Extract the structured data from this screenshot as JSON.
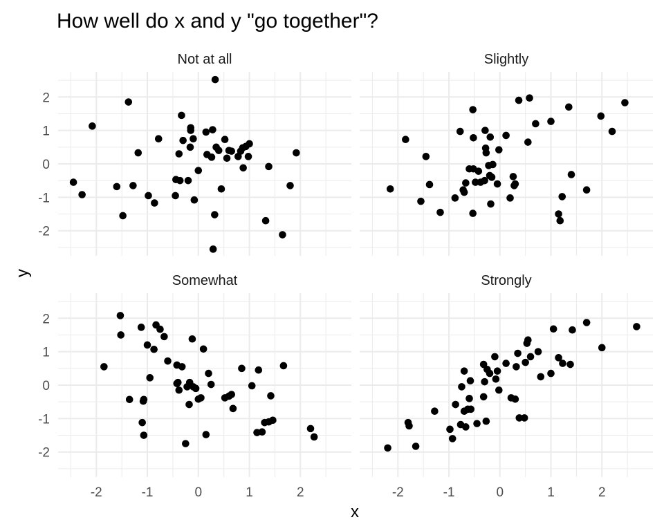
{
  "chart_data": {
    "type": "scatter",
    "title": "How well do x and y \"go together\"?",
    "xlabel": "x",
    "ylabel": "y",
    "xlim": [
      -2.75,
      3.0
    ],
    "ylim": [
      -2.75,
      2.75
    ],
    "x_ticks": [
      -2,
      -1,
      0,
      1,
      2
    ],
    "y_ticks": [
      -2,
      -1,
      0,
      1,
      2
    ],
    "grid": true,
    "facets": [
      {
        "label": "Not at all",
        "points": [
          [
            -2.45,
            -0.55
          ],
          [
            -2.28,
            -0.92
          ],
          [
            -2.08,
            1.13
          ],
          [
            -1.6,
            -0.68
          ],
          [
            -1.48,
            -1.55
          ],
          [
            -1.37,
            1.85
          ],
          [
            -1.28,
            -0.65
          ],
          [
            -1.18,
            0.33
          ],
          [
            -0.98,
            -0.95
          ],
          [
            -0.86,
            -1.17
          ],
          [
            -0.78,
            0.75
          ],
          [
            -0.45,
            -0.95
          ],
          [
            -0.44,
            -0.47
          ],
          [
            -0.38,
            0.3
          ],
          [
            -0.36,
            -0.5
          ],
          [
            -0.33,
            1.45
          ],
          [
            -0.3,
            0.7
          ],
          [
            -0.2,
            -0.5
          ],
          [
            -0.16,
            0.5
          ],
          [
            -0.15,
            1.0
          ],
          [
            -0.15,
            1.08
          ],
          [
            -0.1,
            0.75
          ],
          [
            -0.08,
            -1.08
          ],
          [
            0.0,
            -0.2
          ],
          [
            0.15,
            0.95
          ],
          [
            0.17,
            0.28
          ],
          [
            0.26,
            0.2
          ],
          [
            0.28,
            1.02
          ],
          [
            0.29,
            -2.55
          ],
          [
            0.32,
            -1.52
          ],
          [
            0.33,
            2.52
          ],
          [
            0.35,
            0.5
          ],
          [
            0.4,
            0.4
          ],
          [
            0.45,
            -0.75
          ],
          [
            0.52,
            0.73
          ],
          [
            0.56,
            0.17
          ],
          [
            0.6,
            0.4
          ],
          [
            0.65,
            0.38
          ],
          [
            0.78,
            0.22
          ],
          [
            0.83,
            0.38
          ],
          [
            0.87,
            0.48
          ],
          [
            0.88,
            -0.12
          ],
          [
            0.93,
            0.52
          ],
          [
            0.98,
            0.22
          ],
          [
            1.0,
            0.6
          ],
          [
            1.38,
            -0.08
          ],
          [
            1.32,
            -1.7
          ],
          [
            1.65,
            -2.12
          ],
          [
            1.8,
            -0.65
          ],
          [
            1.92,
            0.33
          ]
        ]
      },
      {
        "label": "Slightly",
        "points": [
          [
            -2.15,
            -0.75
          ],
          [
            -1.85,
            0.73
          ],
          [
            -1.55,
            -1.12
          ],
          [
            -1.45,
            0.22
          ],
          [
            -1.38,
            -0.62
          ],
          [
            -1.17,
            -1.45
          ],
          [
            -0.88,
            -1.02
          ],
          [
            -0.78,
            0.97
          ],
          [
            -0.72,
            -0.78
          ],
          [
            -0.7,
            -0.85
          ],
          [
            -0.67,
            -0.57
          ],
          [
            -0.6,
            -0.15
          ],
          [
            -0.53,
            1.62
          ],
          [
            -0.52,
            -0.15
          ],
          [
            -0.53,
            -1.48
          ],
          [
            -0.52,
            0.78
          ],
          [
            -0.42,
            -0.22
          ],
          [
            -0.38,
            -0.55
          ],
          [
            -0.3,
            -0.5
          ],
          [
            -0.29,
            1.0
          ],
          [
            -0.27,
            0.33
          ],
          [
            -0.28,
            0.47
          ],
          [
            -0.22,
            -0.05
          ],
          [
            -0.2,
            -0.35
          ],
          [
            -0.19,
            0.8
          ],
          [
            -0.18,
            -1.2
          ],
          [
            -0.16,
            -0.4
          ],
          [
            -0.14,
            -0.02
          ],
          [
            -0.05,
            -0.6
          ],
          [
            -0.02,
            0.42
          ],
          [
            0.12,
            0.85
          ],
          [
            0.2,
            -1.02
          ],
          [
            0.26,
            -0.38
          ],
          [
            0.28,
            -0.65
          ],
          [
            0.3,
            -0.6
          ],
          [
            0.37,
            1.9
          ],
          [
            0.55,
            0.65
          ],
          [
            0.58,
            1.97
          ],
          [
            0.7,
            1.2
          ],
          [
            1.0,
            1.27
          ],
          [
            1.15,
            -1.5
          ],
          [
            1.18,
            -1.7
          ],
          [
            1.22,
            -0.98
          ],
          [
            1.35,
            1.7
          ],
          [
            1.4,
            -0.32
          ],
          [
            1.7,
            -0.78
          ],
          [
            1.98,
            1.43
          ],
          [
            2.2,
            0.97
          ],
          [
            2.45,
            1.83
          ],
          [
            -0.48,
            -0.55
          ]
        ]
      },
      {
        "label": "Somewhat",
        "points": [
          [
            -1.85,
            0.55
          ],
          [
            -1.53,
            2.08
          ],
          [
            -1.52,
            1.5
          ],
          [
            -1.35,
            -0.43
          ],
          [
            -1.12,
            1.73
          ],
          [
            -1.1,
            -1.12
          ],
          [
            -1.08,
            -0.48
          ],
          [
            -1.07,
            -0.43
          ],
          [
            -1.07,
            -1.5
          ],
          [
            -1.0,
            1.2
          ],
          [
            -0.95,
            0.22
          ],
          [
            -0.87,
            1.07
          ],
          [
            -0.83,
            1.8
          ],
          [
            -0.75,
            1.67
          ],
          [
            -0.67,
            1.45
          ],
          [
            -0.6,
            0.72
          ],
          [
            -0.42,
            0.6
          ],
          [
            -0.4,
            0.08
          ],
          [
            -0.38,
            -0.15
          ],
          [
            -0.32,
            0.55
          ],
          [
            -0.25,
            -1.75
          ],
          [
            -0.22,
            -0.05
          ],
          [
            -0.18,
            -0.58
          ],
          [
            -0.17,
            0.08
          ],
          [
            -0.12,
            1.38
          ],
          [
            -0.1,
            -0.05
          ],
          [
            -0.05,
            -0.1
          ],
          [
            0.0,
            -0.42
          ],
          [
            0.05,
            -0.38
          ],
          [
            0.1,
            1.08
          ],
          [
            0.15,
            -1.48
          ],
          [
            0.2,
            0.35
          ],
          [
            0.25,
            0.02
          ],
          [
            0.52,
            -0.38
          ],
          [
            0.6,
            -0.33
          ],
          [
            0.65,
            -0.28
          ],
          [
            0.68,
            -0.7
          ],
          [
            0.85,
            0.5
          ],
          [
            1.05,
            -0.02
          ],
          [
            1.15,
            -1.42
          ],
          [
            1.18,
            0.45
          ],
          [
            1.25,
            -1.4
          ],
          [
            1.3,
            -1.12
          ],
          [
            1.38,
            -1.1
          ],
          [
            1.42,
            -0.32
          ],
          [
            1.46,
            -1.05
          ],
          [
            1.67,
            0.58
          ],
          [
            2.2,
            -1.3
          ],
          [
            2.27,
            -1.55
          ],
          [
            -0.42,
            0.05
          ]
        ]
      },
      {
        "label": "Strongly",
        "points": [
          [
            -2.2,
            -1.88
          ],
          [
            -1.8,
            -1.12
          ],
          [
            -1.78,
            -1.22
          ],
          [
            -1.65,
            -1.83
          ],
          [
            -1.28,
            -0.78
          ],
          [
            -0.98,
            -1.32
          ],
          [
            -0.93,
            -1.6
          ],
          [
            -0.87,
            -0.58
          ],
          [
            -0.77,
            -1.18
          ],
          [
            -0.75,
            -0.05
          ],
          [
            -0.7,
            -0.78
          ],
          [
            -0.7,
            0.42
          ],
          [
            -0.67,
            -1.25
          ],
          [
            -0.63,
            -0.72
          ],
          [
            -0.6,
            -0.4
          ],
          [
            -0.58,
            0.13
          ],
          [
            -0.57,
            -0.72
          ],
          [
            -0.45,
            -1.15
          ],
          [
            -0.32,
            0.62
          ],
          [
            -0.32,
            -0.35
          ],
          [
            -0.3,
            0.1
          ],
          [
            -0.27,
            -1.08
          ],
          [
            -0.25,
            0.47
          ],
          [
            -0.2,
            0.35
          ],
          [
            -0.1,
            0.85
          ],
          [
            -0.08,
            0.18
          ],
          [
            -0.05,
            0.42
          ],
          [
            -0.02,
            -0.15
          ],
          [
            0.12,
            0.65
          ],
          [
            0.22,
            -0.38
          ],
          [
            0.3,
            -0.42
          ],
          [
            0.32,
            0.55
          ],
          [
            0.35,
            0.95
          ],
          [
            0.38,
            -0.98
          ],
          [
            0.48,
            -0.98
          ],
          [
            0.5,
            0.68
          ],
          [
            0.53,
            1.25
          ],
          [
            0.55,
            1.35
          ],
          [
            0.6,
            0.85
          ],
          [
            0.75,
            1.0
          ],
          [
            0.8,
            0.25
          ],
          [
            1.0,
            0.35
          ],
          [
            1.05,
            1.68
          ],
          [
            1.15,
            0.82
          ],
          [
            1.23,
            0.65
          ],
          [
            1.38,
            0.62
          ],
          [
            1.42,
            1.65
          ],
          [
            1.7,
            1.87
          ],
          [
            2.0,
            1.12
          ],
          [
            2.68,
            1.75
          ]
        ]
      }
    ]
  }
}
